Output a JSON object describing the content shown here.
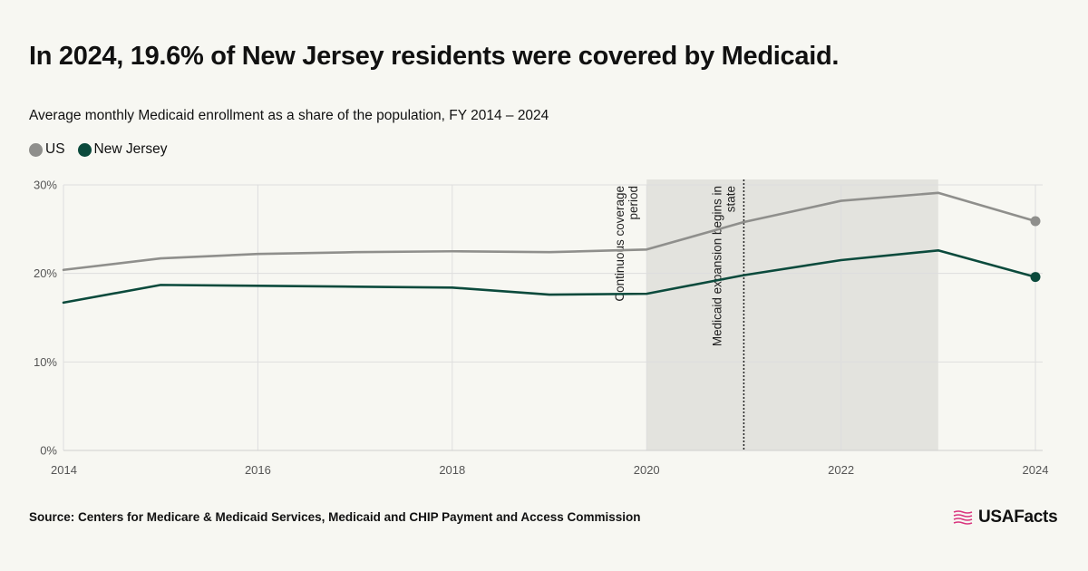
{
  "title": "In 2024, 19.6% of New Jersey residents were covered by Medicaid.",
  "subtitle": "Average monthly Medicaid enrollment as a share of the population, FY 2014 – 2024",
  "source": "Source: Centers for Medicare & Medicaid Services, Medicaid and CHIP Payment and Access Commission",
  "brand": "USAFacts",
  "colors": {
    "us": "#8f8f8c",
    "nj": "#0b4a3c",
    "shade": "#e3e3de",
    "grid": "#dedede",
    "brand_icon": "#d9357e"
  },
  "chart_data": {
    "type": "line",
    "title": "In 2024, 19.6% of New Jersey residents were covered by Medicaid.",
    "subtitle": "Average monthly Medicaid enrollment as a share of the population, FY 2014 – 2024",
    "x": [
      2014,
      2015,
      2016,
      2017,
      2018,
      2019,
      2020,
      2021,
      2022,
      2023,
      2024
    ],
    "x_ticks": [
      "2014",
      "2016",
      "2018",
      "2020",
      "2022",
      "2024"
    ],
    "y_ticks": [
      "0%",
      "10%",
      "20%",
      "30%"
    ],
    "xlim": [
      2014,
      2024
    ],
    "ylim": [
      0,
      30
    ],
    "grid": true,
    "legend_position": "top-left",
    "series": [
      {
        "name": "US",
        "values": [
          20.4,
          21.7,
          22.2,
          22.4,
          22.5,
          22.4,
          22.7,
          25.8,
          28.2,
          29.1,
          25.9
        ]
      },
      {
        "name": "New Jersey",
        "values": [
          16.7,
          18.7,
          18.6,
          18.5,
          18.4,
          17.6,
          17.7,
          19.8,
          21.5,
          22.6,
          19.6
        ]
      }
    ],
    "shaded_region": {
      "x_start": 2020,
      "x_end": 2023,
      "label": "Continuous coverage period"
    },
    "vertical_marker": {
      "x": 2021,
      "label": "Medicaid expansion begins in state"
    }
  }
}
